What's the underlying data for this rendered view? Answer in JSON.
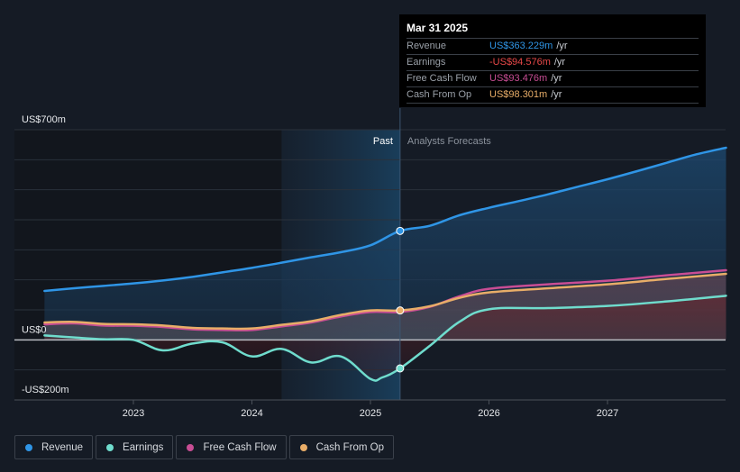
{
  "tooltip": {
    "date": "Mar 31 2025",
    "rows": [
      {
        "label": "Revenue",
        "value": "US$363.229m",
        "unit": "/yr",
        "color": "#2f95e6"
      },
      {
        "label": "Earnings",
        "value": "-US$94.576m",
        "unit": "/yr",
        "color": "#e84848"
      },
      {
        "label": "Free Cash Flow",
        "value": "US$93.476m",
        "unit": "/yr",
        "color": "#c84d94"
      },
      {
        "label": "Cash From Op",
        "value": "US$98.301m",
        "unit": "/yr",
        "color": "#e8ad68"
      }
    ]
  },
  "section_labels": {
    "past": "Past",
    "forecast": "Analysts Forecasts"
  },
  "legend": [
    {
      "label": "Revenue",
      "color": "#2f95e6"
    },
    {
      "label": "Earnings",
      "color": "#6fdccd"
    },
    {
      "label": "Free Cash Flow",
      "color": "#c84d94"
    },
    {
      "label": "Cash From Op",
      "color": "#e8ad68"
    }
  ],
  "chart_data": {
    "type": "line",
    "title": "",
    "xlabel": "",
    "ylabel": "",
    "y_tick_labels": [
      {
        "value": 700,
        "label": "US$700m"
      },
      {
        "value": 0,
        "label": "US$0"
      },
      {
        "value": -200,
        "label": "-US$200m"
      }
    ],
    "ylim": [
      -200,
      700
    ],
    "xlim": [
      2022.3,
      2028.0
    ],
    "x_ticks": [
      2023,
      2024,
      2025,
      2026,
      2027
    ],
    "x_tick_labels": [
      "2023",
      "2024",
      "2025",
      "2026",
      "2027"
    ],
    "grid": true,
    "legend_position": "bottom-left",
    "past_forecast_split": 2025.25,
    "highlight_start": 2024.25,
    "series": [
      {
        "name": "Revenue",
        "color": "#2f95e6",
        "x": [
          2022.25,
          2022.5,
          2022.75,
          2023.0,
          2023.25,
          2023.5,
          2023.75,
          2024.0,
          2024.25,
          2024.5,
          2024.75,
          2025.0,
          2025.25,
          2025.5,
          2025.75,
          2026.0,
          2026.25,
          2026.5,
          2026.75,
          2027.0,
          2027.25,
          2027.5,
          2027.75,
          2028.0
        ],
        "values": [
          163,
          172,
          180,
          188,
          198,
          210,
          225,
          240,
          257,
          275,
          292,
          315,
          363,
          380,
          415,
          440,
          462,
          485,
          510,
          535,
          562,
          590,
          618,
          640
        ]
      },
      {
        "name": "Earnings",
        "color": "#6fdccd",
        "x": [
          2022.25,
          2022.5,
          2022.75,
          2023.0,
          2023.25,
          2023.5,
          2023.75,
          2024.0,
          2024.25,
          2024.5,
          2024.75,
          2025.0,
          2025.1,
          2025.25,
          2025.5,
          2025.75,
          2026.0,
          2026.5,
          2027.0,
          2027.5,
          2028.0
        ],
        "values": [
          15,
          8,
          2,
          0,
          -35,
          -12,
          -8,
          -55,
          -30,
          -75,
          -55,
          -130,
          -125,
          -95,
          -20,
          60,
          102,
          106,
          113,
          128,
          147
        ]
      },
      {
        "name": "Free Cash Flow",
        "color": "#c84d94",
        "x": [
          2022.25,
          2022.5,
          2022.75,
          2023.0,
          2023.25,
          2023.5,
          2023.75,
          2024.0,
          2024.25,
          2024.5,
          2024.75,
          2025.0,
          2025.25,
          2025.5,
          2025.75,
          2026.0,
          2026.5,
          2027.0,
          2027.5,
          2028.0
        ],
        "values": [
          52,
          55,
          48,
          47,
          43,
          35,
          33,
          33,
          45,
          58,
          78,
          93,
          93,
          110,
          145,
          170,
          185,
          197,
          215,
          232
        ]
      },
      {
        "name": "Cash From Op",
        "color": "#e8ad68",
        "x": [
          2022.25,
          2022.5,
          2022.75,
          2023.0,
          2023.25,
          2023.5,
          2023.75,
          2024.0,
          2024.25,
          2024.5,
          2024.75,
          2025.0,
          2025.25,
          2025.5,
          2025.75,
          2026.0,
          2026.5,
          2027.0,
          2027.5,
          2028.0
        ],
        "values": [
          58,
          60,
          53,
          52,
          48,
          40,
          38,
          38,
          50,
          62,
          83,
          98,
          98,
          112,
          140,
          158,
          172,
          185,
          203,
          220
        ]
      }
    ]
  }
}
